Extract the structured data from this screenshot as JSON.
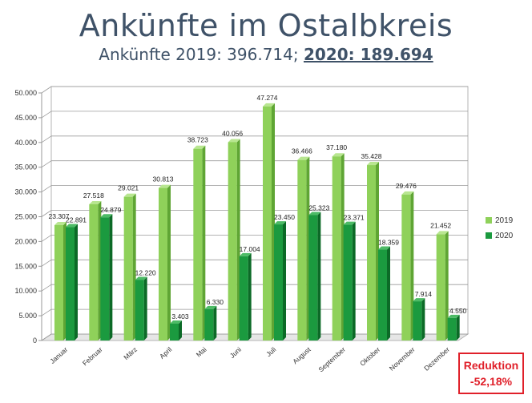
{
  "title": "Ankünfte im Ostalbkreis",
  "subtitle": {
    "part1": "Ankünfte 2019: 396.714; ",
    "part2": "2020: 189.694"
  },
  "reduction": {
    "line1": "Reduktion",
    "line2": "-52,18%"
  },
  "colors": {
    "s2019": "#8fd15a",
    "s2019_dark": "#5fa534",
    "s2020": "#1b9a3f",
    "s2020_dark": "#0c6a27",
    "accent": "#e0202a"
  },
  "chart_data": {
    "type": "bar",
    "categories": [
      "Januar",
      "Februar",
      "März",
      "April",
      "Mai",
      "Juni",
      "Juli",
      "August",
      "September",
      "Oktober",
      "November",
      "Dezember"
    ],
    "series": [
      {
        "name": "2019",
        "values": [
          23307,
          27518,
          29021,
          30813,
          38723,
          40056,
          47274,
          36466,
          37180,
          35428,
          29476,
          21452
        ],
        "labels": [
          "23.307",
          "27.518",
          "29.021",
          "30.813",
          "38.723",
          "40.056",
          "47.274",
          "36.466",
          "37.180",
          "35.428",
          "29.476",
          "21.452"
        ]
      },
      {
        "name": "2020",
        "values": [
          22891,
          24879,
          12220,
          3403,
          6330,
          17004,
          23450,
          25323,
          23371,
          18359,
          7914,
          4550
        ],
        "labels": [
          "22.891",
          "24.879",
          "12.220",
          "3.403",
          "6.330",
          "17.004",
          "23.450",
          "25.323",
          "23.371",
          "18.359",
          "7.914",
          "4.550"
        ]
      }
    ],
    "ylim": [
      0,
      50000
    ],
    "yticks": [
      0,
      5000,
      10000,
      15000,
      20000,
      25000,
      30000,
      35000,
      40000,
      45000,
      50000
    ],
    "ytick_labels": [
      "0",
      "5.000",
      "10.000",
      "15.000",
      "20.000",
      "25.000",
      "30.000",
      "35.000",
      "40.000",
      "45.000",
      "50.000"
    ],
    "grid": true,
    "legend": "right",
    "title": "",
    "xlabel": "",
    "ylabel": ""
  }
}
